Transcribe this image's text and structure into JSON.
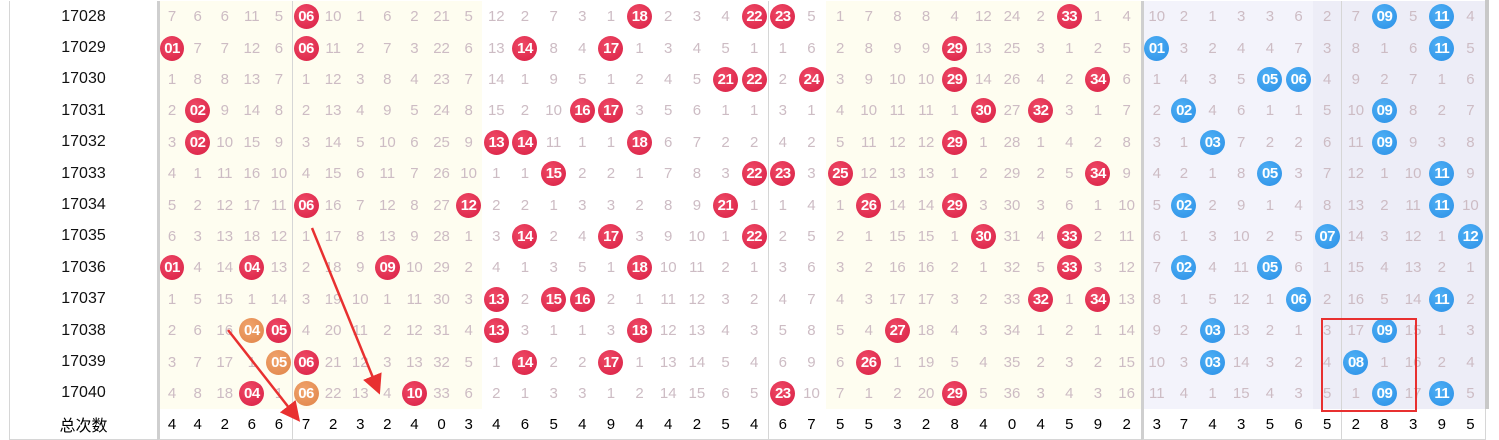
{
  "total_label": "总次数",
  "colors": {
    "red_ball": "#d81e44",
    "blue_ball": "#2a8fe6",
    "repeat_ball": "#e08348",
    "annotation": "#e83030"
  },
  "rows": [
    {
      "issue": "17028",
      "red": [
        "7",
        "6",
        "6",
        "11",
        "5",
        "06",
        "10",
        "1",
        "6",
        "2",
        "21",
        "5",
        "12",
        "2",
        "7",
        "3",
        "1",
        "18",
        "2",
        "3",
        "4",
        "22",
        "23",
        "5",
        "1",
        "7",
        "8",
        "8",
        "4",
        "12",
        "24",
        "2",
        "33",
        "1",
        "4"
      ],
      "red_hits": [
        6,
        18,
        22,
        23,
        33
      ],
      "red_repeat": [],
      "blue": [
        "10",
        "2",
        "1",
        "3",
        "3",
        "6",
        "2",
        "7",
        "09",
        "5",
        "11",
        "4"
      ],
      "blue_hits": [
        9,
        11
      ]
    },
    {
      "issue": "17029",
      "red": [
        "01",
        "7",
        "7",
        "12",
        "6",
        "06",
        "11",
        "2",
        "7",
        "3",
        "22",
        "6",
        "13",
        "14",
        "8",
        "4",
        "17",
        "1",
        "3",
        "4",
        "5",
        "1",
        "1",
        "6",
        "2",
        "8",
        "9",
        "9",
        "29",
        "13",
        "25",
        "3",
        "1",
        "2",
        "5"
      ],
      "red_hits": [
        1,
        6,
        14,
        17,
        29
      ],
      "red_repeat": [],
      "blue": [
        "01",
        "3",
        "2",
        "4",
        "4",
        "7",
        "3",
        "8",
        "1",
        "6",
        "11",
        "5"
      ],
      "blue_hits": [
        1,
        11
      ]
    },
    {
      "issue": "17030",
      "red": [
        "1",
        "8",
        "8",
        "13",
        "7",
        "1",
        "12",
        "3",
        "8",
        "4",
        "23",
        "7",
        "14",
        "1",
        "9",
        "5",
        "1",
        "2",
        "4",
        "5",
        "21",
        "22",
        "2",
        "24",
        "3",
        "9",
        "10",
        "10",
        "29",
        "14",
        "26",
        "4",
        "2",
        "34",
        "6"
      ],
      "red_hits": [
        21,
        22,
        24,
        29,
        34
      ],
      "red_repeat": [],
      "blue": [
        "1",
        "4",
        "3",
        "5",
        "05",
        "06",
        "4",
        "9",
        "2",
        "7",
        "1",
        "6"
      ],
      "blue_hits": [
        5,
        6
      ]
    },
    {
      "issue": "17031",
      "red": [
        "2",
        "02",
        "9",
        "14",
        "8",
        "2",
        "13",
        "4",
        "9",
        "5",
        "24",
        "8",
        "15",
        "2",
        "10",
        "16",
        "17",
        "3",
        "5",
        "6",
        "1",
        "1",
        "3",
        "1",
        "4",
        "10",
        "11",
        "11",
        "1",
        "30",
        "27",
        "32",
        "3",
        "1",
        "7"
      ],
      "red_hits": [
        2,
        16,
        17,
        30,
        32
      ],
      "red_repeat": [],
      "blue": [
        "2",
        "02",
        "4",
        "6",
        "1",
        "1",
        "5",
        "10",
        "09",
        "8",
        "2",
        "7"
      ],
      "blue_hits": [
        2,
        9
      ]
    },
    {
      "issue": "17032",
      "red": [
        "3",
        "02",
        "10",
        "15",
        "9",
        "3",
        "14",
        "5",
        "10",
        "6",
        "25",
        "9",
        "13",
        "14",
        "11",
        "1",
        "1",
        "18",
        "6",
        "7",
        "2",
        "2",
        "4",
        "2",
        "5",
        "11",
        "12",
        "12",
        "29",
        "1",
        "28",
        "1",
        "4",
        "2",
        "8"
      ],
      "red_hits": [
        2,
        13,
        14,
        18,
        29
      ],
      "red_repeat": [],
      "blue": [
        "3",
        "1",
        "03",
        "7",
        "2",
        "2",
        "6",
        "11",
        "09",
        "9",
        "3",
        "8"
      ],
      "blue_hits": [
        3,
        9
      ]
    },
    {
      "issue": "17033",
      "red": [
        "4",
        "1",
        "11",
        "16",
        "10",
        "4",
        "15",
        "6",
        "11",
        "7",
        "26",
        "10",
        "1",
        "1",
        "15",
        "2",
        "2",
        "1",
        "7",
        "8",
        "3",
        "22",
        "23",
        "3",
        "25",
        "12",
        "13",
        "13",
        "1",
        "2",
        "29",
        "2",
        "5",
        "34",
        "9"
      ],
      "red_hits": [
        15,
        22,
        23,
        25,
        34
      ],
      "red_repeat": [],
      "blue": [
        "4",
        "2",
        "1",
        "8",
        "05",
        "3",
        "7",
        "12",
        "1",
        "10",
        "11",
        "9"
      ],
      "blue_hits": [
        5,
        11
      ]
    },
    {
      "issue": "17034",
      "red": [
        "5",
        "2",
        "12",
        "17",
        "11",
        "06",
        "16",
        "7",
        "12",
        "8",
        "27",
        "12",
        "2",
        "2",
        "1",
        "3",
        "3",
        "2",
        "8",
        "9",
        "21",
        "1",
        "1",
        "4",
        "1",
        "26",
        "14",
        "14",
        "29",
        "3",
        "30",
        "3",
        "6",
        "1",
        "10"
      ],
      "red_hits": [
        6,
        12,
        21,
        26,
        29
      ],
      "red_repeat": [],
      "blue": [
        "5",
        "02",
        "2",
        "9",
        "1",
        "4",
        "8",
        "13",
        "2",
        "11",
        "11",
        "10"
      ],
      "blue_hits": [
        2,
        11
      ]
    },
    {
      "issue": "17035",
      "red": [
        "6",
        "3",
        "13",
        "18",
        "12",
        "1",
        "17",
        "8",
        "13",
        "9",
        "28",
        "1",
        "3",
        "14",
        "2",
        "4",
        "17",
        "3",
        "9",
        "10",
        "1",
        "22",
        "2",
        "5",
        "2",
        "1",
        "15",
        "15",
        "1",
        "30",
        "31",
        "4",
        "33",
        "2",
        "11"
      ],
      "red_hits": [
        14,
        17,
        22,
        30,
        33
      ],
      "red_repeat": [],
      "blue": [
        "6",
        "1",
        "3",
        "10",
        "2",
        "5",
        "07",
        "14",
        "3",
        "12",
        "1",
        "12"
      ],
      "blue_hits": [
        7,
        12
      ]
    },
    {
      "issue": "17036",
      "red": [
        "01",
        "4",
        "14",
        "04",
        "13",
        "2",
        "18",
        "9",
        "09",
        "10",
        "29",
        "2",
        "4",
        "1",
        "3",
        "5",
        "1",
        "18",
        "10",
        "11",
        "2",
        "1",
        "3",
        "6",
        "3",
        "2",
        "16",
        "16",
        "2",
        "1",
        "32",
        "5",
        "33",
        "3",
        "12"
      ],
      "red_hits": [
        1,
        4,
        9,
        18,
        33
      ],
      "red_repeat": [],
      "blue": [
        "7",
        "02",
        "4",
        "11",
        "05",
        "6",
        "1",
        "15",
        "4",
        "13",
        "2",
        "1"
      ],
      "blue_hits": [
        2,
        5
      ]
    },
    {
      "issue": "17037",
      "red": [
        "1",
        "5",
        "15",
        "1",
        "14",
        "3",
        "19",
        "10",
        "1",
        "11",
        "30",
        "3",
        "13",
        "2",
        "15",
        "16",
        "2",
        "1",
        "11",
        "12",
        "3",
        "2",
        "4",
        "7",
        "4",
        "3",
        "17",
        "17",
        "3",
        "2",
        "33",
        "32",
        "1",
        "34",
        "13"
      ],
      "red_hits": [
        13,
        15,
        16,
        32,
        34
      ],
      "red_repeat": [],
      "blue": [
        "8",
        "1",
        "5",
        "12",
        "1",
        "06",
        "2",
        "16",
        "5",
        "14",
        "11",
        "2"
      ],
      "blue_hits": [
        6,
        11
      ]
    },
    {
      "issue": "17038",
      "red": [
        "2",
        "6",
        "16",
        "04",
        "05",
        "4",
        "20",
        "11",
        "2",
        "12",
        "31",
        "4",
        "13",
        "3",
        "1",
        "1",
        "3",
        "18",
        "12",
        "13",
        "4",
        "3",
        "5",
        "8",
        "5",
        "4",
        "27",
        "18",
        "4",
        "3",
        "34",
        "1",
        "2",
        "1",
        "14"
      ],
      "red_hits": [
        5,
        13,
        18,
        27
      ],
      "red_repeat": [
        4
      ],
      "blue": [
        "9",
        "2",
        "03",
        "13",
        "2",
        "1",
        "3",
        "17",
        "09",
        "15",
        "1",
        "3"
      ],
      "blue_hits": [
        3,
        9
      ]
    },
    {
      "issue": "17039",
      "red": [
        "3",
        "7",
        "17",
        "1",
        "05",
        "06",
        "21",
        "12",
        "3",
        "13",
        "32",
        "5",
        "1",
        "14",
        "2",
        "2",
        "17",
        "1",
        "13",
        "14",
        "5",
        "4",
        "6",
        "9",
        "6",
        "26",
        "1",
        "19",
        "5",
        "4",
        "35",
        "2",
        "3",
        "2",
        "15"
      ],
      "red_hits": [
        6,
        14,
        17,
        26
      ],
      "red_repeat": [
        5
      ],
      "blue": [
        "10",
        "3",
        "03",
        "14",
        "3",
        "2",
        "4",
        "08",
        "1",
        "16",
        "2",
        "4"
      ],
      "blue_hits": [
        3,
        8
      ]
    },
    {
      "issue": "17040",
      "red": [
        "4",
        "8",
        "18",
        "04",
        "1",
        "06",
        "22",
        "13",
        "4",
        "10",
        "33",
        "6",
        "2",
        "1",
        "3",
        "3",
        "1",
        "2",
        "14",
        "15",
        "6",
        "5",
        "23",
        "10",
        "7",
        "1",
        "2",
        "20",
        "29",
        "5",
        "36",
        "3",
        "4",
        "3",
        "16"
      ],
      "red_hits": [
        4,
        10,
        23,
        29
      ],
      "red_repeat": [
        6
      ],
      "blue": [
        "11",
        "4",
        "1",
        "15",
        "4",
        "3",
        "5",
        "1",
        "09",
        "17",
        "11",
        "5"
      ],
      "blue_hits": [
        9,
        11
      ]
    }
  ],
  "totals": {
    "red": [
      "4",
      "4",
      "2",
      "6",
      "6",
      "7",
      "2",
      "3",
      "2",
      "4",
      "0",
      "3",
      "4",
      "6",
      "5",
      "4",
      "9",
      "4",
      "4",
      "2",
      "5",
      "4",
      "6",
      "7",
      "5",
      "5",
      "3",
      "2",
      "8",
      "4",
      "0",
      "4",
      "5",
      "9",
      "2"
    ],
    "blue": [
      "3",
      "7",
      "4",
      "3",
      "5",
      "6",
      "5",
      "2",
      "8",
      "3",
      "9",
      "5"
    ]
  }
}
